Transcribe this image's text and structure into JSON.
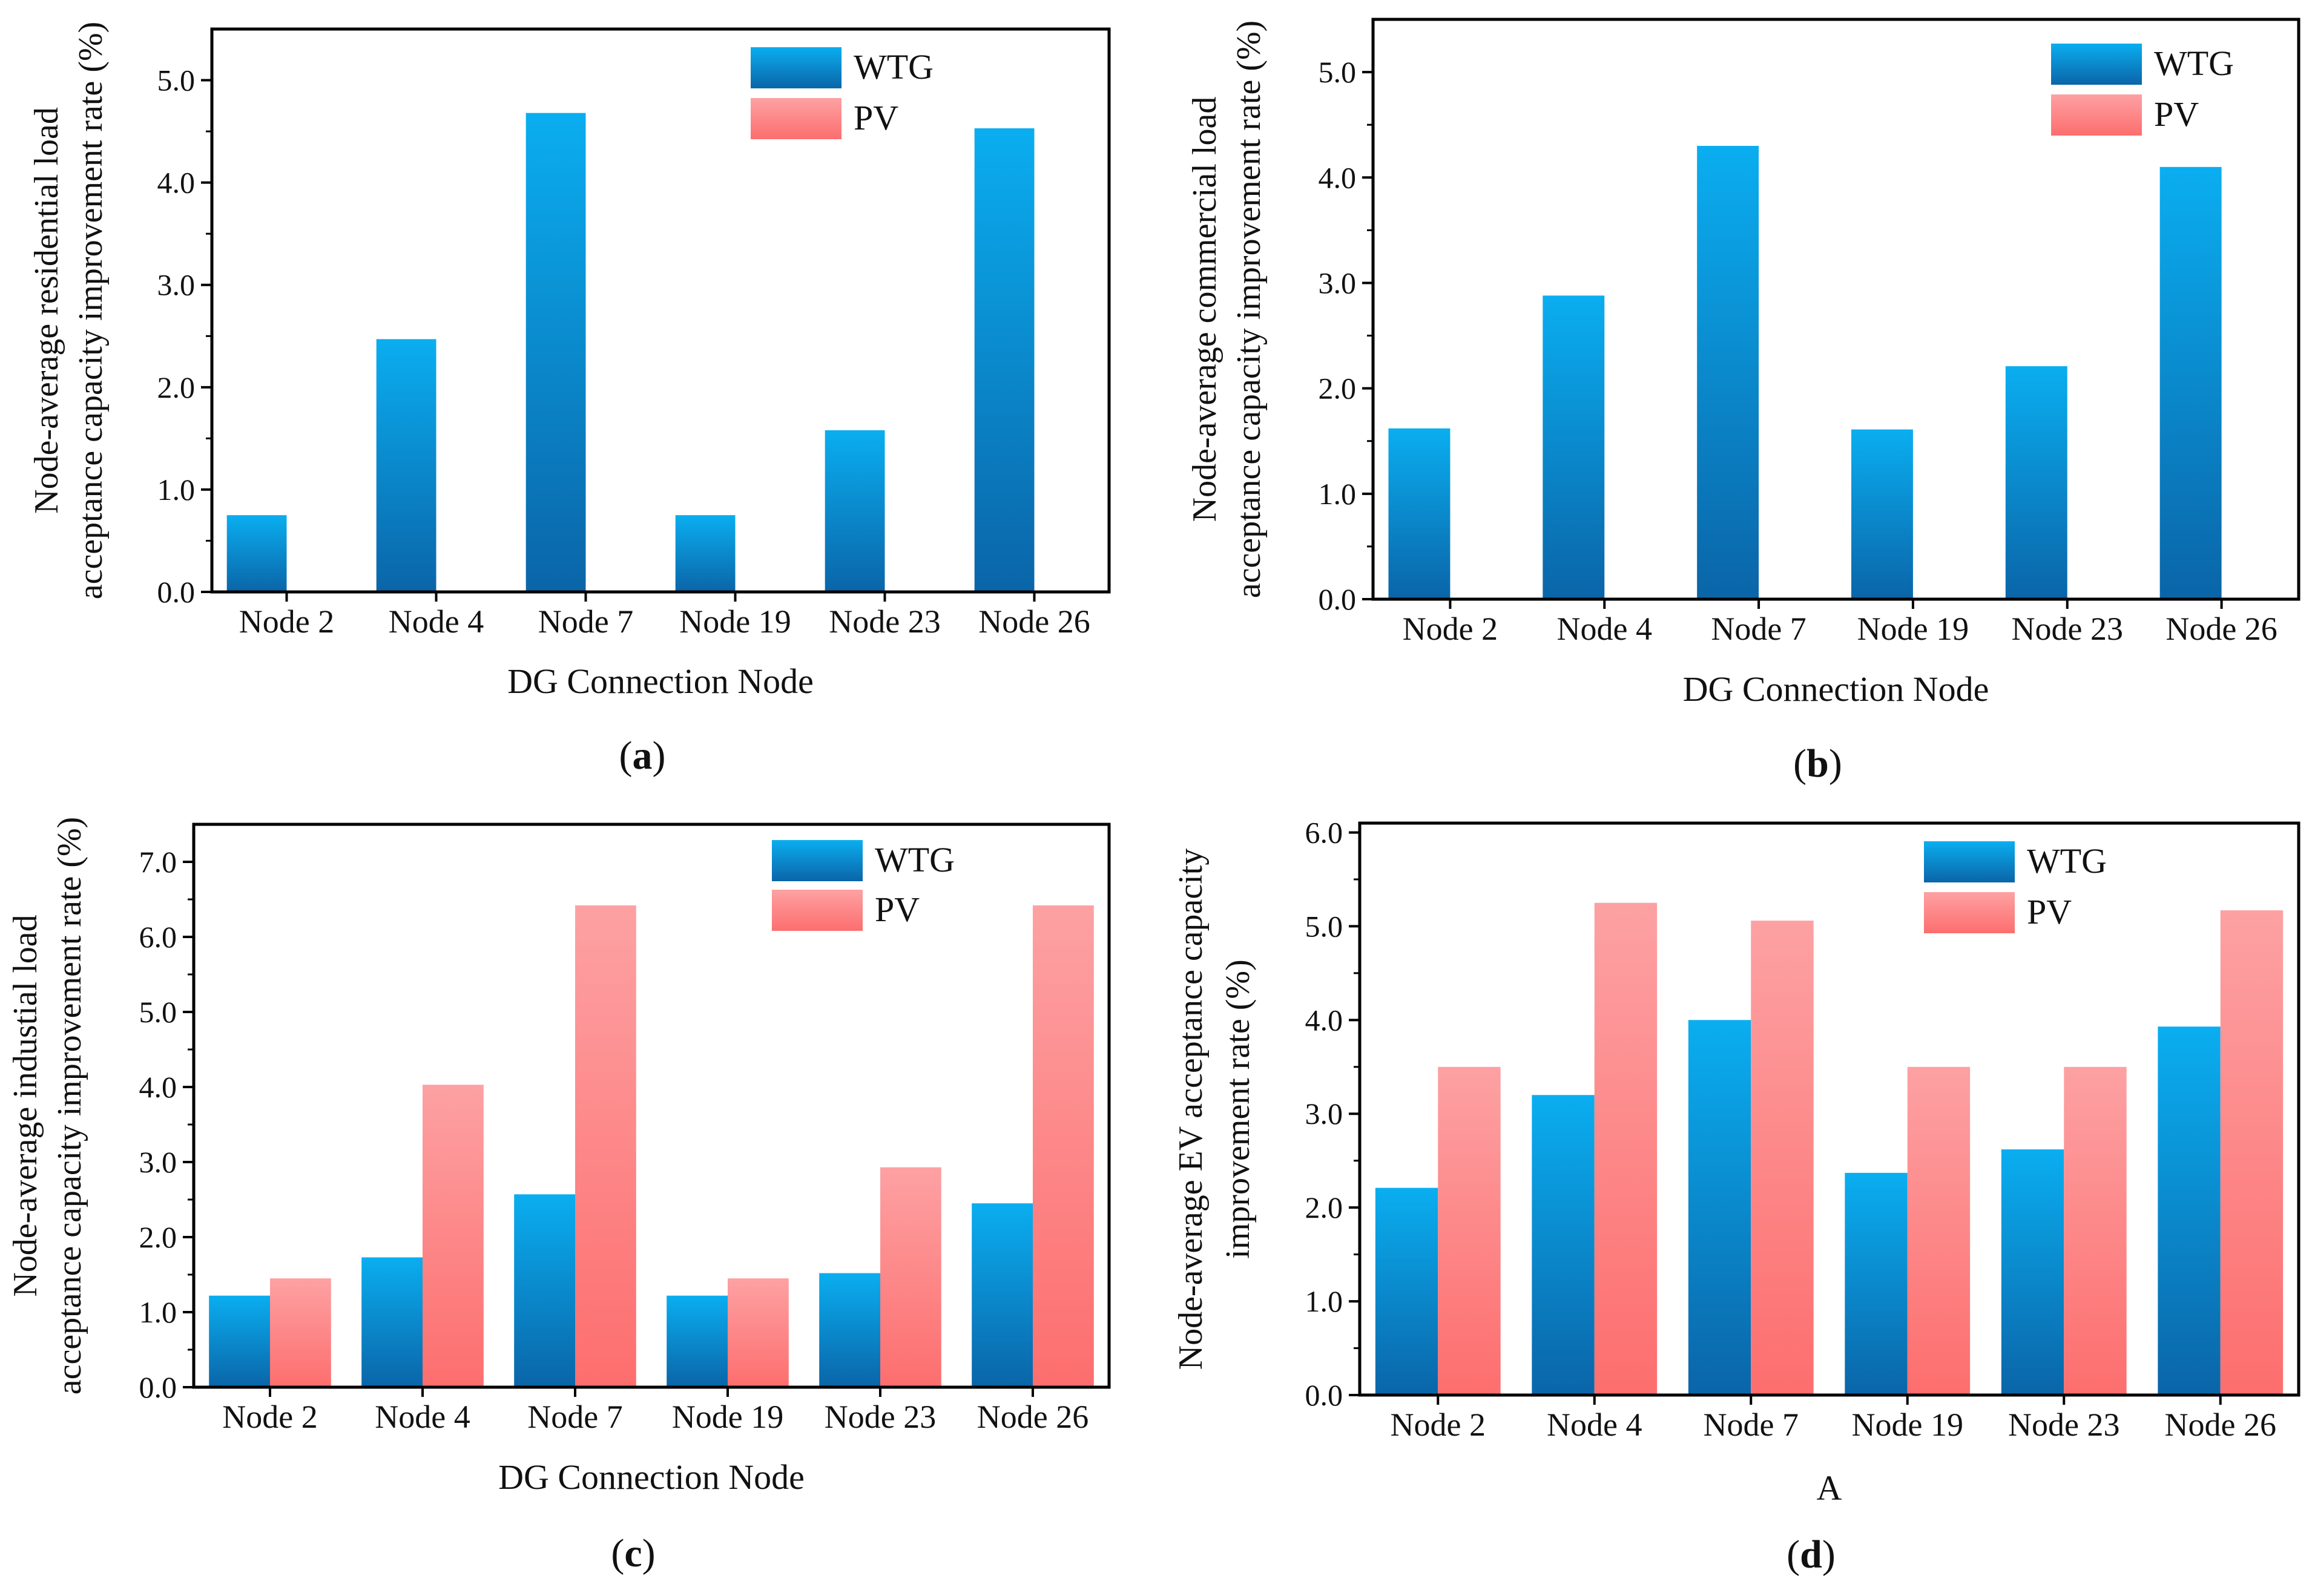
{
  "chart_data": [
    {
      "type": "bar",
      "panel_label": "a",
      "categories": [
        "Node 2",
        "Node 4",
        "Node 7",
        "Node 19",
        "Node 23",
        "Node 26"
      ],
      "series": [
        {
          "name": "WTG",
          "values": [
            0.75,
            2.47,
            4.68,
            0.75,
            1.58,
            4.53
          ]
        },
        {
          "name": "PV",
          "values": [
            0,
            0,
            0,
            0,
            0,
            0
          ]
        }
      ],
      "xlabel": "DG Connection Node",
      "ylabel_lines": [
        "Node-average residential load",
        "acceptance capacity improvement rate (%)"
      ],
      "ylim": [
        0,
        5.5
      ],
      "yticks": [
        0,
        1,
        2,
        3,
        4,
        5
      ],
      "ytick_labels": [
        "0.0",
        "1.0",
        "2.0",
        "3.0",
        "4.0",
        "5.0"
      ],
      "legend_position": "top-right"
    },
    {
      "type": "bar",
      "panel_label": "b",
      "categories": [
        "Node 2",
        "Node 4",
        "Node 7",
        "Node 19",
        "Node 23",
        "Node 26"
      ],
      "series": [
        {
          "name": "WTG",
          "values": [
            1.62,
            2.88,
            4.3,
            1.61,
            2.21,
            4.1
          ]
        },
        {
          "name": "PV",
          "values": [
            0,
            0,
            0,
            0,
            0,
            0
          ]
        }
      ],
      "xlabel": "DG Connection Node",
      "ylabel_lines": [
        "Node-average commercial load",
        "acceptance capacity improvement rate (%)"
      ],
      "ylim": [
        0,
        5.5
      ],
      "yticks": [
        0,
        1,
        2,
        3,
        4,
        5
      ],
      "ytick_labels": [
        "0.0",
        "1.0",
        "2.0",
        "3.0",
        "4.0",
        "5.0"
      ],
      "legend_position": "top-right"
    },
    {
      "type": "bar",
      "panel_label": "c",
      "categories": [
        "Node 2",
        "Node 4",
        "Node 7",
        "Node 19",
        "Node 23",
        "Node 26"
      ],
      "series": [
        {
          "name": "WTG",
          "values": [
            1.22,
            1.73,
            2.57,
            1.22,
            1.52,
            2.45
          ]
        },
        {
          "name": "PV",
          "values": [
            1.45,
            4.03,
            6.42,
            1.45,
            2.93,
            6.42
          ]
        }
      ],
      "xlabel": "DG Connection Node",
      "ylabel_lines": [
        "Node-average industial load",
        "acceptance capacity improvement rate (%)"
      ],
      "ylim": [
        0,
        7.5
      ],
      "yticks": [
        0,
        1,
        2,
        3,
        4,
        5,
        6,
        7
      ],
      "ytick_labels": [
        "0.0",
        "1.0",
        "2.0",
        "3.0",
        "4.0",
        "5.0",
        "6.0",
        "7.0"
      ],
      "legend_position": "top-right"
    },
    {
      "type": "bar",
      "panel_label": "d",
      "categories": [
        "Node 2",
        "Node 4",
        "Node 7",
        "Node 19",
        "Node 23",
        "Node 26"
      ],
      "series": [
        {
          "name": "WTG",
          "values": [
            2.21,
            3.2,
            4.0,
            2.37,
            2.62,
            3.93
          ]
        },
        {
          "name": "PV",
          "values": [
            3.5,
            5.25,
            5.06,
            3.5,
            3.5,
            5.17
          ]
        }
      ],
      "xlabel": "A",
      "ylabel_lines": [
        "Node-average EV acceptance capacity",
        "improvement rate (%)"
      ],
      "ylim": [
        0,
        6.1
      ],
      "yticks": [
        0,
        1,
        2,
        3,
        4,
        5,
        6
      ],
      "ytick_labels": [
        "0.0",
        "1.0",
        "2.0",
        "3.0",
        "4.0",
        "5.0",
        "6.0"
      ],
      "legend_position": "top-right"
    }
  ]
}
